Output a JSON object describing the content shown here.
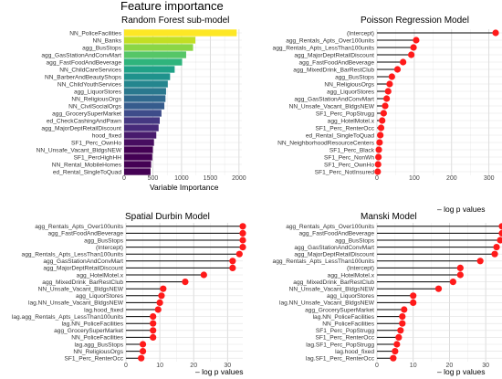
{
  "page_title": "Feature importance",
  "chart_data": [
    {
      "id": "rf",
      "type": "bar",
      "title": "Random Forest sub-model",
      "xlabel": "Variable Importance",
      "xlim": [
        0,
        2050
      ],
      "xticks": [
        0,
        500,
        1000,
        1500,
        2000
      ],
      "grid": true,
      "categories": [
        "NN_PoliceFacilities",
        "NN_Banks",
        "agg_BusStops",
        "agg_GasStationAndConvMart",
        "agg_FastFoodAndBeverage",
        "NN_ChildCareServices",
        "NN_BarberAndBeautyShops",
        "NN_ChildYouthServices",
        "agg_LiquorStores",
        "NN_ReligiousOrgs",
        "NN_CivilSocialOrgs",
        "agg_GrocerySuperMarket",
        "ed_CheckCashingAndPawn",
        "agg_MajorDeptRetailDiscount",
        "hood_fixed",
        "SF1_Perc_OwnHo",
        "NN_Unsafe_Vacant_BldgsNEW",
        "SF1_PercHighHH",
        "NN_Rental_MobileHomes",
        "ed_Rental_SingleToQuad"
      ],
      "values": [
        1960,
        1240,
        1200,
        1080,
        1010,
        880,
        800,
        760,
        730,
        720,
        700,
        650,
        620,
        600,
        560,
        520,
        500,
        490,
        470,
        460
      ],
      "colors": [
        "#fde725",
        "#c2df23",
        "#8bd646",
        "#56c667",
        "#2fb47c",
        "#1fa187",
        "#1f928c",
        "#24868e",
        "#2a788e",
        "#30698e",
        "#365c8d",
        "#3e4c8a",
        "#453882",
        "#472a7a",
        "#481b6d",
        "#470d60",
        "#440154",
        "#440154",
        "#440154",
        "#440154"
      ]
    },
    {
      "id": "poisson",
      "type": "lollipop",
      "title": "Poisson Regression Model",
      "xlabel": "– log p values",
      "xlim": [
        0,
        335
      ],
      "xticks": [
        0,
        100,
        200,
        300
      ],
      "grid": true,
      "categories": [
        "(Intercept)",
        "agg_Rentals_Apts_Over100units",
        "agg_Rentals_Apts_LessThan100units",
        "agg_MajorDeptRetailDiscount",
        "agg_FastFoodAndBeverage",
        "agg_MixedDrink_BarRestClub",
        "agg_BusStops",
        "NN_ReligiousOrgs",
        "agg_LiquorStores",
        "agg_GasStationAndConvMart",
        "NN_Unsafe_Vacant_BldgsNEW",
        "SF1_Perc_PopStrugg",
        "agg_HotelMotel.x",
        "SF1_Perc_RenterOcc",
        "ed_Rental_SingleToQuad",
        "NN_NeighborhoodResourceCenters",
        "SF1_Perc_Black",
        "SF1_Perc_NonWh",
        "SF1_Perc_OwnHo",
        "SF1_Perc_NotInsured"
      ],
      "values": [
        318,
        105,
        98,
        92,
        70,
        55,
        40,
        34,
        30,
        26,
        22,
        18,
        14,
        11,
        9,
        7,
        5,
        4,
        3,
        2
      ]
    },
    {
      "id": "durbin",
      "type": "lollipop",
      "title": "Spatial Durbin Model",
      "xlabel": "– log p values",
      "xlim": [
        0,
        34.5
      ],
      "xticks": [
        0,
        10,
        20,
        30
      ],
      "grid": true,
      "categories": [
        "agg_Rentals_Apts_Over100units",
        "agg_FastFoodAndBeverage",
        "agg_BusStops",
        "(Intercept)",
        "agg_Rentals_Apts_LessThan100units",
        "agg_GasStationAndConvMart",
        "agg_MajorDeptRetailDiscount",
        "agg_HotelMotel.x",
        "agg_MixedDrink_BarRestClub",
        "NN_Unsafe_Vacant_BldgsNEW",
        "agg_LiquorStores",
        "lag.NN_Unsafe_Vacant_BldgsNEW",
        "lag.hood_fixed",
        "lag.agg_Rentals_Apts_LessThan100units",
        "lag.NN_PoliceFacilities",
        "agg_GrocerySuperMarket",
        "NN_PoliceFacilities",
        "lag.agg_BusStops",
        "NN_ReligiousOrgs",
        "SF1_Perc_RenterOcc"
      ],
      "values": [
        34.5,
        34.5,
        34.5,
        34.5,
        33.5,
        31.5,
        31.5,
        23,
        17.5,
        11,
        10.5,
        10,
        9.5,
        8,
        8,
        8,
        8,
        5,
        5,
        4.5
      ]
    },
    {
      "id": "manski",
      "type": "lollipop",
      "title": "Manski Model",
      "xlabel": "– log p values",
      "xlim": [
        0,
        34.5
      ],
      "xticks": [
        0,
        10,
        20,
        30
      ],
      "grid": true,
      "categories": [
        "agg_Rentals_Apts_Over100units",
        "agg_FastFoodAndBeverage",
        "agg_BusStops",
        "agg_GasStationAndConvMart",
        "agg_MajorDeptRetailDiscount",
        "agg_Rentals_Apts_LessThan100units",
        "(Intercept)",
        "agg_HotelMotel.x",
        "agg_MixedDrink_BarRestClub",
        "NN_Unsafe_Vacant_BldgsNEW",
        "agg_LiquorStores",
        "lag.NN_Unsafe_Vacant_BldgsNEW",
        "agg_GrocerySuperMarket",
        "lag.NN_PoliceFacilities",
        "NN_PoliceFacilities",
        "SF1_Perc_PopStrugg",
        "SF1_Perc_RenterOcc",
        "lag.SF1_Perc_PopStrugg",
        "lag.hood_fixed",
        "lag.SF1_Perc_RenterOcc"
      ],
      "values": [
        34.5,
        34.5,
        34,
        33,
        32.5,
        28.5,
        23,
        23,
        21,
        17,
        10,
        10,
        7.5,
        7,
        7,
        6.5,
        6,
        5.5,
        5,
        4.5
      ]
    }
  ]
}
